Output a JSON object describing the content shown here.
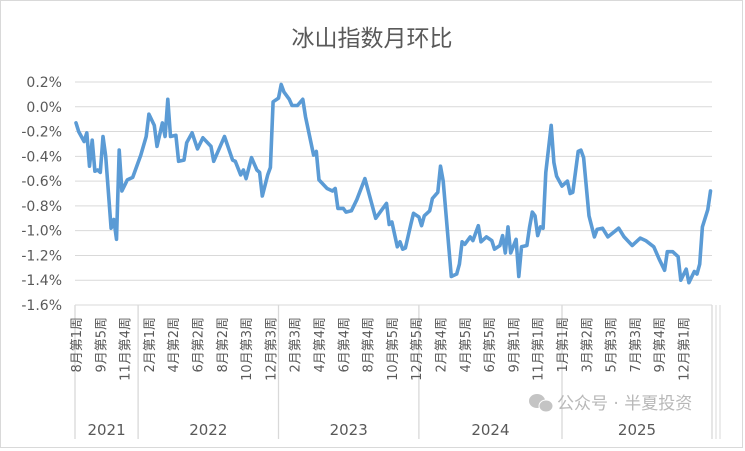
{
  "chart_data": {
    "type": "line",
    "title": "冰山指数月环比",
    "xlabel": "",
    "ylabel": "",
    "ylim": [
      -1.6,
      0.2
    ],
    "yticks": [
      "0.2%",
      "0.0%",
      "-0.2%",
      "-0.4%",
      "-0.6%",
      "-0.8%",
      "-1.0%",
      "-1.2%",
      "-1.4%",
      "-1.6%"
    ],
    "ytick_values": [
      0.2,
      0.0,
      -0.2,
      -0.4,
      -0.6,
      -0.8,
      -1.0,
      -1.2,
      -1.4,
      -1.6
    ],
    "grid": true,
    "legend": "none",
    "line_color": "#5B9BD5",
    "x_range": [
      0,
      235
    ],
    "tick_labels": [
      "8月第1周",
      "9月第5周",
      "11月第4周",
      "2月第1周",
      "4月第2周",
      "6月第2周",
      "8月第2周",
      "10月第3周",
      "12月第3周",
      "2月第3周",
      "4月第4周",
      "6月第4周",
      "8月第4周",
      "10月第5周",
      "12月第5周",
      "2月第4周",
      "4月第5周",
      "6月第5周",
      "9月第1周",
      "11月第1周",
      "1月第1周",
      "3月第2周",
      "5月第3周",
      "7月第3周",
      "9月第4周",
      "12月第1周"
    ],
    "years": [
      {
        "label": "2021",
        "from": 0,
        "to": 23
      },
      {
        "label": "2022",
        "from": 23,
        "to": 75
      },
      {
        "label": "2023",
        "from": 75,
        "to": 127
      },
      {
        "label": "2024",
        "from": 127,
        "to": 180
      },
      {
        "label": "2025",
        "from": 180,
        "to": 235
      }
    ],
    "series": [
      {
        "unit": "%",
        "points": [
          [
            0,
            -0.13
          ],
          [
            1,
            -0.2
          ],
          [
            3,
            -0.28
          ],
          [
            4,
            -0.21
          ],
          [
            5,
            -0.48
          ],
          [
            6,
            -0.27
          ],
          [
            7,
            -0.52
          ],
          [
            8,
            -0.51
          ],
          [
            9,
            -0.53
          ],
          [
            10,
            -0.24
          ],
          [
            11,
            -0.4
          ],
          [
            13,
            -0.98
          ],
          [
            14,
            -0.91
          ],
          [
            15,
            -1.07
          ],
          [
            16,
            -0.35
          ],
          [
            17,
            -0.68
          ],
          [
            19,
            -0.59
          ],
          [
            21,
            -0.57
          ],
          [
            24,
            -0.39
          ],
          [
            26,
            -0.24
          ],
          [
            27,
            -0.06
          ],
          [
            29,
            -0.15
          ],
          [
            30,
            -0.32
          ],
          [
            32,
            -0.13
          ],
          [
            33,
            -0.24
          ],
          [
            34,
            0.06
          ],
          [
            35,
            -0.24
          ],
          [
            37,
            -0.23
          ],
          [
            38,
            -0.44
          ],
          [
            40,
            -0.43
          ],
          [
            41,
            -0.29
          ],
          [
            43,
            -0.21
          ],
          [
            45,
            -0.34
          ],
          [
            47,
            -0.25
          ],
          [
            50,
            -0.32
          ],
          [
            51,
            -0.44
          ],
          [
            54,
            -0.29
          ],
          [
            55,
            -0.24
          ],
          [
            58,
            -0.43
          ],
          [
            59,
            -0.44
          ],
          [
            61,
            -0.55
          ],
          [
            62,
            -0.51
          ],
          [
            63,
            -0.58
          ],
          [
            65,
            -0.41
          ],
          [
            67,
            -0.51
          ],
          [
            68,
            -0.53
          ],
          [
            69,
            -0.72
          ],
          [
            71,
            -0.55
          ],
          [
            72,
            -0.49
          ],
          [
            73,
            0.04
          ],
          [
            75,
            0.07
          ],
          [
            76,
            0.18
          ],
          [
            77,
            0.12
          ],
          [
            79,
            0.06
          ],
          [
            80,
            0.01
          ],
          [
            82,
            0.01
          ],
          [
            84,
            0.06
          ],
          [
            85,
            -0.08
          ],
          [
            88,
            -0.39
          ],
          [
            89,
            -0.36
          ],
          [
            90,
            -0.59
          ],
          [
            93,
            -0.66
          ],
          [
            95,
            -0.68
          ],
          [
            96,
            -0.66
          ],
          [
            97,
            -0.82
          ],
          [
            99,
            -0.82
          ],
          [
            100,
            -0.85
          ],
          [
            102,
            -0.84
          ],
          [
            104,
            -0.75
          ],
          [
            107,
            -0.58
          ],
          [
            111,
            -0.9
          ],
          [
            113,
            -0.84
          ],
          [
            115,
            -0.78
          ],
          [
            116,
            -0.95
          ],
          [
            117,
            -0.93
          ],
          [
            119,
            -1.13
          ],
          [
            120,
            -1.09
          ],
          [
            121,
            -1.15
          ],
          [
            122,
            -1.14
          ],
          [
            124,
            -0.95
          ],
          [
            125,
            -0.86
          ],
          [
            127,
            -0.89
          ],
          [
            128,
            -0.96
          ],
          [
            129,
            -0.88
          ],
          [
            131,
            -0.84
          ],
          [
            132,
            -0.74
          ],
          [
            134,
            -0.69
          ],
          [
            135,
            -0.48
          ],
          [
            136,
            -0.6
          ],
          [
            139,
            -1.37
          ],
          [
            141,
            -1.35
          ],
          [
            142,
            -1.27
          ],
          [
            143,
            -1.09
          ],
          [
            144,
            -1.11
          ],
          [
            146,
            -1.05
          ],
          [
            147,
            -1.08
          ],
          [
            149,
            -0.96
          ],
          [
            150,
            -1.09
          ],
          [
            152,
            -1.05
          ],
          [
            154,
            -1.08
          ],
          [
            155,
            -1.15
          ],
          [
            157,
            -1.12
          ],
          [
            158,
            -1.04
          ],
          [
            159,
            -1.18
          ],
          [
            160,
            -0.97
          ],
          [
            161,
            -1.18
          ],
          [
            163,
            -1.07
          ],
          [
            164,
            -1.37
          ],
          [
            165,
            -1.13
          ],
          [
            167,
            -1.12
          ],
          [
            168,
            -0.97
          ],
          [
            169,
            -0.85
          ],
          [
            170,
            -0.88
          ],
          [
            171,
            -1.04
          ],
          [
            172,
            -0.97
          ],
          [
            173,
            -0.98
          ],
          [
            174,
            -0.53
          ],
          [
            176,
            -0.15
          ],
          [
            177,
            -0.45
          ],
          [
            178,
            -0.56
          ],
          [
            180,
            -0.64
          ],
          [
            182,
            -0.6
          ],
          [
            183,
            -0.7
          ],
          [
            184,
            -0.69
          ],
          [
            186,
            -0.36
          ],
          [
            187,
            -0.35
          ],
          [
            188,
            -0.41
          ],
          [
            190,
            -0.88
          ],
          [
            192,
            -1.05
          ],
          [
            193,
            -0.99
          ],
          [
            195,
            -0.98
          ],
          [
            197,
            -1.05
          ],
          [
            201,
            -0.98
          ],
          [
            203,
            -1.05
          ],
          [
            206,
            -1.12
          ],
          [
            209,
            -1.06
          ],
          [
            211,
            -1.08
          ],
          [
            214,
            -1.13
          ],
          [
            216,
            -1.23
          ],
          [
            218,
            -1.32
          ],
          [
            219,
            -1.17
          ],
          [
            221,
            -1.17
          ],
          [
            223,
            -1.21
          ],
          [
            224,
            -1.4
          ],
          [
            226,
            -1.31
          ],
          [
            227,
            -1.42
          ],
          [
            229,
            -1.33
          ],
          [
            230,
            -1.35
          ],
          [
            231,
            -1.27
          ],
          [
            232,
            -0.97
          ],
          [
            234,
            -0.83
          ],
          [
            235,
            -0.68
          ]
        ]
      }
    ]
  },
  "watermark": {
    "text": "公众号 · 半夏投资",
    "icon": "wechat-icon"
  }
}
